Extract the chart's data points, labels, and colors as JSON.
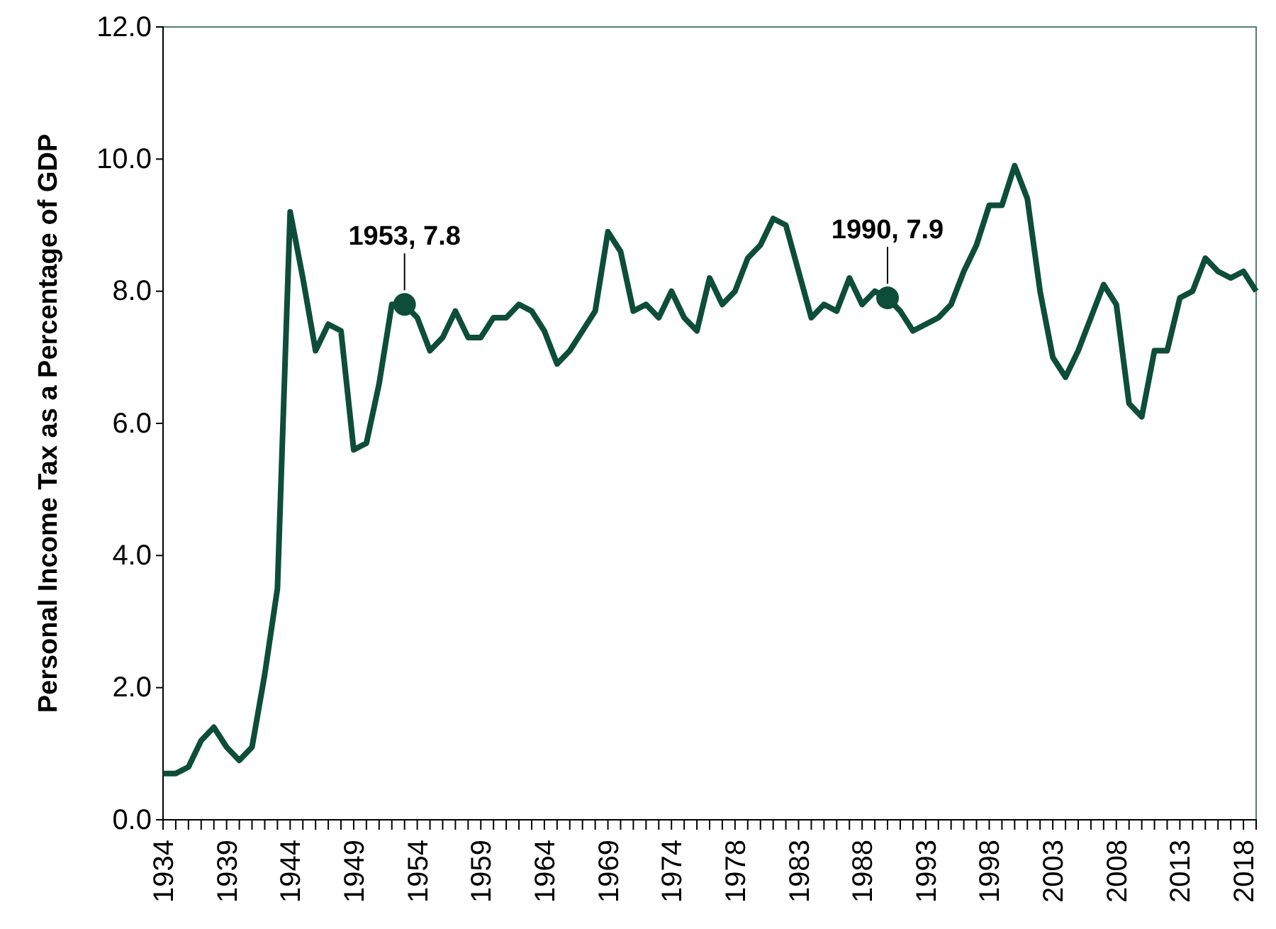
{
  "chart_data": {
    "type": "line",
    "ylabel": "Personal Income Tax as a Percentage of GDP",
    "categories": [
      "1934",
      null,
      null,
      null,
      null,
      "1939",
      null,
      null,
      null,
      null,
      "1944",
      null,
      null,
      null,
      null,
      "1949",
      null,
      null,
      null,
      null,
      "1954",
      null,
      null,
      null,
      null,
      "1959",
      null,
      null,
      null,
      null,
      "1964",
      null,
      null,
      null,
      null,
      "1969",
      null,
      null,
      null,
      null,
      "1974",
      null,
      null,
      null,
      null,
      "1978",
      null,
      null,
      null,
      null,
      "1983",
      null,
      null,
      null,
      null,
      "1988",
      null,
      null,
      null,
      null,
      "1993",
      null,
      null,
      null,
      null,
      "1998",
      null,
      null,
      null,
      null,
      "2003",
      null,
      null,
      null,
      null,
      "2008",
      null,
      null,
      null,
      null,
      "2013",
      null,
      null,
      null,
      null,
      "2018",
      null
    ],
    "series": [
      {
        "color": "#0d4d3a",
        "values": [
          0.7,
          0.7,
          0.8,
          1.2,
          1.4,
          1.1,
          0.9,
          1.1,
          2.2,
          3.5,
          9.2,
          8.2,
          7.1,
          7.5,
          7.4,
          5.6,
          5.7,
          6.6,
          7.8,
          7.8,
          7.6,
          7.1,
          7.3,
          7.7,
          7.3,
          7.3,
          7.6,
          7.6,
          7.8,
          7.7,
          7.4,
          6.9,
          7.1,
          7.4,
          7.7,
          8.9,
          8.6,
          7.7,
          7.8,
          7.6,
          8.0,
          7.6,
          7.4,
          8.2,
          7.8,
          8.0,
          8.5,
          8.7,
          9.1,
          9.0,
          8.3,
          7.6,
          7.8,
          7.7,
          8.2,
          7.8,
          8.0,
          7.9,
          7.7,
          7.4,
          7.5,
          7.6,
          7.8,
          8.3,
          8.7,
          9.3,
          9.3,
          9.9,
          9.4,
          8.0,
          7.0,
          6.7,
          7.1,
          7.6,
          8.1,
          7.8,
          6.3,
          6.1,
          7.1,
          7.1,
          7.9,
          8.0,
          8.5,
          8.3,
          8.2,
          8.3,
          8.0
        ]
      },
      {
        "type": "scatter",
        "color": "#0d4d3a",
        "values": [
          null,
          null,
          null,
          null,
          null,
          null,
          null,
          null,
          null,
          null,
          null,
          null,
          null,
          null,
          null,
          null,
          null,
          null,
          null,
          7.8,
          null,
          null,
          null,
          null,
          null,
          null,
          null,
          null,
          null,
          null,
          null,
          null,
          null,
          null,
          null,
          null,
          null,
          null,
          null,
          null,
          null,
          null,
          null,
          null,
          null,
          null,
          null,
          null,
          null,
          null,
          null,
          null,
          null,
          null,
          null,
          null,
          null,
          7.9,
          null,
          null,
          null,
          null,
          null,
          null,
          null,
          null,
          null,
          null,
          null,
          null,
          null,
          null,
          null,
          null,
          null,
          null,
          null,
          null,
          null,
          null,
          null,
          null,
          null,
          null,
          null,
          null,
          null
        ]
      }
    ],
    "annotations": [
      "1953, 7.8",
      "1990, 7.9"
    ],
    "ylim": [
      0,
      12
    ],
    "yticks": [
      {
        "value": 0,
        "label": "0.0"
      },
      {
        "value": 2,
        "label": "2.0"
      },
      {
        "value": 4,
        "label": "4.0"
      },
      {
        "value": 6,
        "label": "6.0"
      },
      {
        "value": 8,
        "label": "8.0"
      },
      {
        "value": 10,
        "label": "10.0"
      },
      {
        "value": 12,
        "label": "12.0"
      }
    ],
    "grid": false
  }
}
